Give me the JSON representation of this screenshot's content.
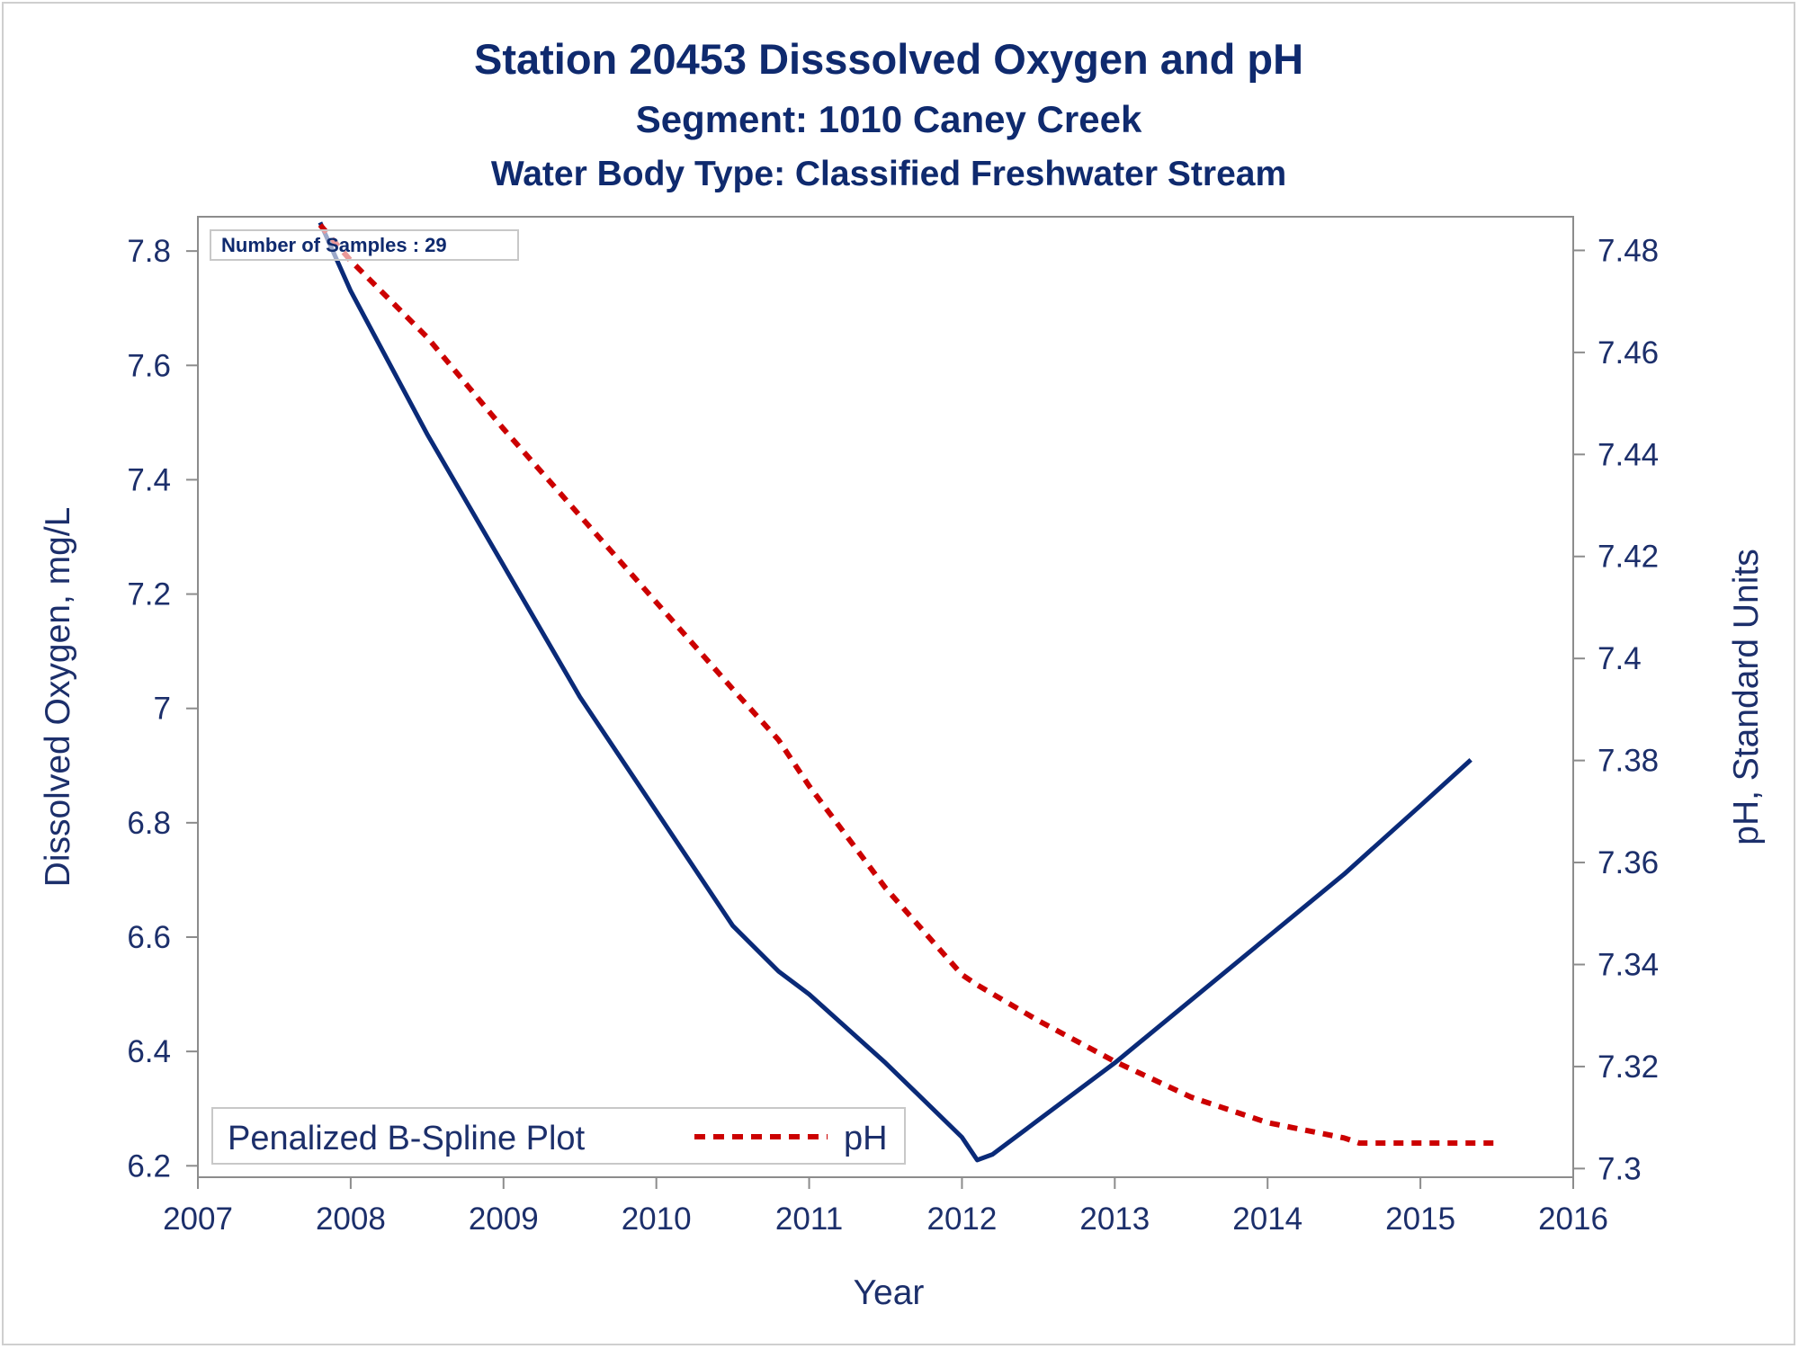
{
  "titles": {
    "line1": "Station 20453   Disssolved Oxygen and pH",
    "line2": "Segment: 1010  Caney Creek",
    "line3": "Water Body Type: Classified Freshwater Stream"
  },
  "inset": {
    "label": "Number of Samples : 29"
  },
  "legend": {
    "title": "Penalized B-Spline Plot",
    "entry": "pH"
  },
  "colors": {
    "do_line": "#0a2a78",
    "ph_line": "#cc0000",
    "text": "#1c2f6b",
    "axis": "#8c8c8c"
  },
  "chart_data": {
    "type": "line",
    "title": "Station 20453   Disssolved Oxygen and pH",
    "subtitle": [
      "Segment: 1010  Caney Creek",
      "Water Body Type: Classified Freshwater Stream"
    ],
    "xlabel": "Year",
    "ylabel": "Dissolved Oxygen, mg/L",
    "y2label": "pH, Standard Units",
    "xlim": [
      2007,
      2016
    ],
    "ylim": [
      6.18,
      7.86
    ],
    "y2lim": [
      7.2983,
      7.4866
    ],
    "x_ticks": [
      "2007",
      "2008",
      "2009",
      "2010",
      "2011",
      "2012",
      "2013",
      "2014",
      "2015",
      "2016"
    ],
    "y_ticks": [
      "6.2",
      "6.4",
      "6.6",
      "6.8",
      "7",
      "7.2",
      "7.4",
      "7.6",
      "7.8"
    ],
    "y2_ticks": [
      "7.3",
      "7.32",
      "7.34",
      "7.36",
      "7.38",
      "7.4",
      "7.42",
      "7.44",
      "7.46",
      "7.48"
    ],
    "grid": false,
    "legend_position": "bottom-left",
    "series": [
      {
        "axis": "left",
        "style": "solid",
        "x": [
          2007.8,
          2008.0,
          2008.5,
          2009.0,
          2009.5,
          2010.0,
          2010.5,
          2010.8,
          2011.0,
          2011.5,
          2012.0,
          2012.1,
          2012.2,
          2012.5,
          2013.0,
          2013.5,
          2014.0,
          2014.5,
          2015.0,
          2015.33
        ],
        "y": [
          7.85,
          7.73,
          7.48,
          7.25,
          7.02,
          6.82,
          6.62,
          6.54,
          6.5,
          6.38,
          6.25,
          6.21,
          6.22,
          6.28,
          6.38,
          6.49,
          6.6,
          6.71,
          6.83,
          6.91
        ]
      },
      {
        "name": "pH",
        "axis": "right",
        "style": "dashed",
        "x": [
          2007.8,
          2008.0,
          2008.5,
          2009.0,
          2009.5,
          2010.0,
          2010.5,
          2010.8,
          2011.0,
          2011.5,
          2012.0,
          2012.1,
          2012.5,
          2013.0,
          2013.5,
          2014.0,
          2014.5,
          2014.6,
          2015.0,
          2015.5
        ],
        "y": [
          7.485,
          7.478,
          7.463,
          7.445,
          7.428,
          7.411,
          7.394,
          7.384,
          7.375,
          7.355,
          7.338,
          7.336,
          7.329,
          7.321,
          7.314,
          7.309,
          7.306,
          7.305,
          7.305,
          7.305
        ]
      }
    ]
  }
}
